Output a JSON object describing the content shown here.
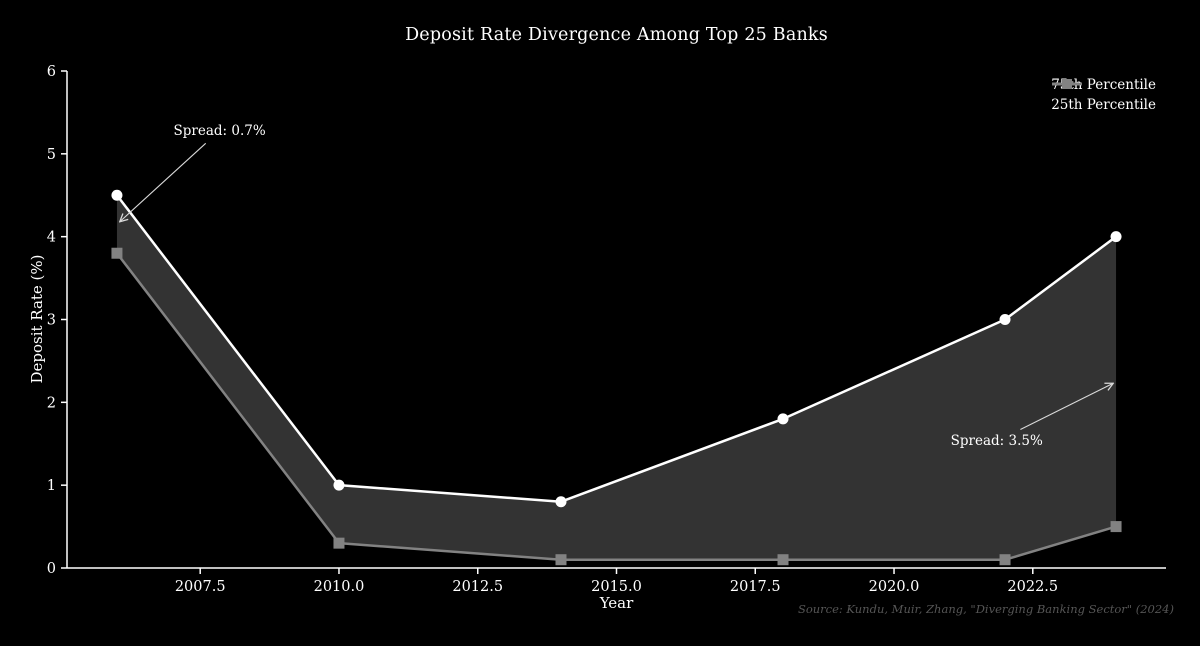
{
  "source_note": "Source: Kundu, Muir, Zhang, \"Diverging Banking Sector\" (2024)",
  "chart_data": {
    "type": "line",
    "title": "Deposit Rate Divergence Among Top 25 Banks",
    "xlabel": "Year",
    "ylabel": "Deposit Rate (%)",
    "x": [
      2006,
      2010,
      2014,
      2018,
      2022,
      2024
    ],
    "series": [
      {
        "name": "75th Percentile",
        "values": [
          4.5,
          1.0,
          0.8,
          1.8,
          3.0,
          4.0
        ],
        "color": "#ffffff",
        "marker": "circle"
      },
      {
        "name": "25th Percentile",
        "values": [
          3.8,
          0.3,
          0.1,
          0.1,
          0.1,
          0.5
        ],
        "color": "#828282",
        "marker": "square"
      }
    ],
    "band_fill_color": "#333333",
    "xlim": [
      2005.1,
      2024.9
    ],
    "ylim": [
      0,
      6
    ],
    "xticks": [
      2007.5,
      2010.0,
      2012.5,
      2015.0,
      2017.5,
      2020.0,
      2022.5
    ],
    "xtick_labels": [
      "2007.5",
      "2010.0",
      "2012.5",
      "2015.0",
      "2017.5",
      "2020.0",
      "2022.5"
    ],
    "yticks": [
      0,
      1,
      2,
      3,
      4,
      5,
      6
    ],
    "ytick_labels": [
      "0",
      "1",
      "2",
      "3",
      "4",
      "5",
      "6"
    ],
    "grid": false,
    "legend_position": "upper right",
    "annotations": [
      {
        "text": "Spread: 0.7%",
        "arrow_x": 2006.05,
        "arrow_y": 4.18,
        "text_x": 2007.85,
        "text_y": 5.28
      },
      {
        "text": "Spread: 3.5%",
        "arrow_x": 2023.95,
        "arrow_y": 2.23,
        "text_x": 2021.85,
        "text_y": 1.53
      }
    ],
    "background_color": "#000000",
    "text_color": "#ffffff",
    "axis_color": "#ffffff",
    "annotation_arrow_color": "#d9d9d9",
    "source_color": "#555555"
  }
}
